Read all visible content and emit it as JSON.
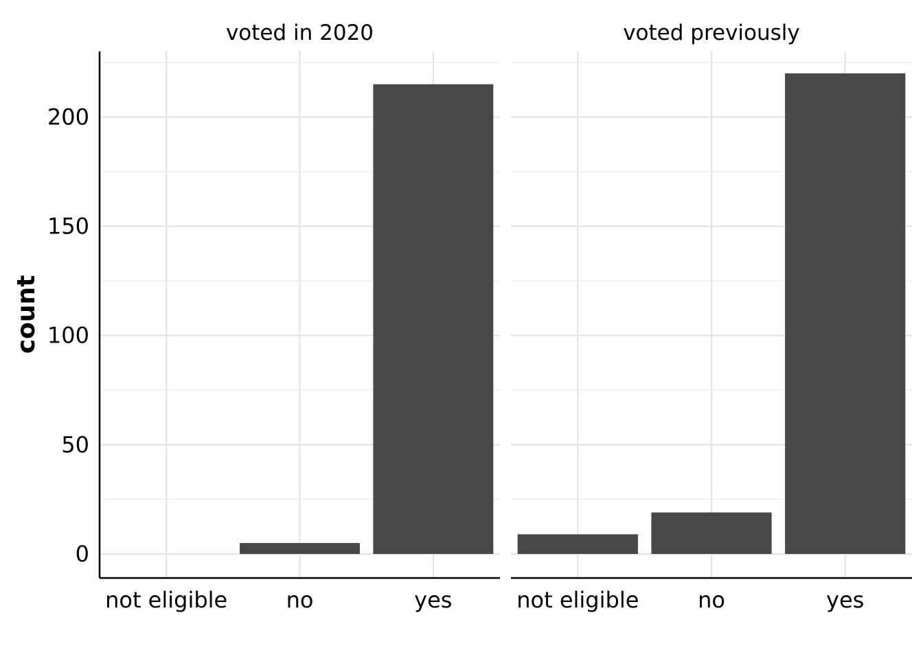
{
  "chart_data": {
    "type": "bar",
    "ylabel": "count",
    "xlabel": "",
    "ylim": [
      -11,
      230
    ],
    "yticks": [
      0,
      50,
      100,
      150,
      200
    ],
    "categories": [
      "not eligible",
      "no",
      "yes"
    ],
    "grid": true,
    "legend": "none",
    "colors": {
      "bar": "#474747",
      "grid": "#e5e5e5",
      "axis": "#000000"
    },
    "panels": [
      {
        "title": "voted in 2020",
        "values": [
          0,
          5,
          215
        ]
      },
      {
        "title": "voted previously",
        "values": [
          9,
          19,
          220
        ]
      }
    ]
  }
}
